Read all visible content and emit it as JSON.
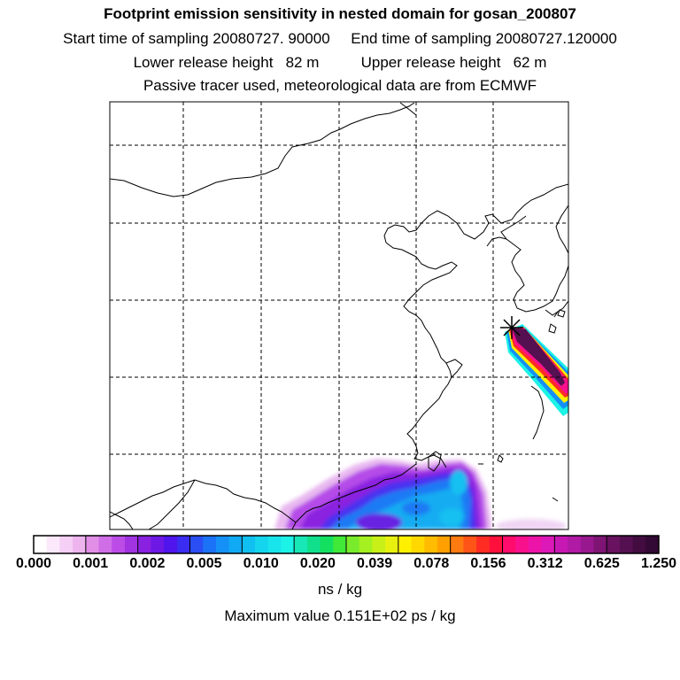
{
  "header": {
    "title": "Footprint emission sensitivity in nested domain for gosan_200807",
    "sampling_line": "Start time of sampling 20080727. 90000     End time of sampling 20080727.120000",
    "height_line": "Lower release height   82 m          Upper release height   62 m",
    "tracer_line": "Passive tracer used, meteorological data are from ECMWF"
  },
  "colorbar": {
    "tick_labels": [
      "0.000",
      "0.001",
      "0.002",
      "0.005",
      "0.010",
      "0.020",
      "0.039",
      "0.078",
      "0.156",
      "0.312",
      "0.625",
      "1.250"
    ],
    "colors": [
      [
        "#ffffff",
        "#fbe8fb",
        "#f5cff5",
        "#eeb4ee"
      ],
      [
        "#e08ee6",
        "#cf6ee6",
        "#bb4de6",
        "#a233e0"
      ],
      [
        "#8a20e0",
        "#6e18e6",
        "#5014ec",
        "#3a2cf0"
      ],
      [
        "#2a4ef4",
        "#1c72f6",
        "#1490f6",
        "#10aaf4"
      ],
      [
        "#10c0f0",
        "#14d4ee",
        "#18e4ec",
        "#1cf2e6"
      ],
      [
        "#18e8b8",
        "#10e08c",
        "#14e060",
        "#40e838"
      ],
      [
        "#78ec2c",
        "#a4f020",
        "#c8f018",
        "#e8f010"
      ],
      [
        "#fff000",
        "#ffd800",
        "#ffbc00",
        "#ffa000"
      ],
      [
        "#ff7a10",
        "#ff5418",
        "#ff2c24",
        "#ff103c"
      ],
      [
        "#ff0c6c",
        "#f8108c",
        "#ec14a8",
        "#dc18b8"
      ],
      [
        "#c818b4",
        "#b01aa4",
        "#981890",
        "#7e1474"
      ],
      [
        "#681260",
        "#541050",
        "#420c40",
        "#320834"
      ]
    ],
    "unit": "ns / kg"
  },
  "footer": {
    "max_value": "Maximum value  0.151E+02 ps / kg"
  },
  "map": {
    "colors": {
      "frame": "#000000",
      "grid": "#000000",
      "coast": "#000000",
      "background": "#ffffff"
    },
    "release_marker": "star-icon"
  }
}
